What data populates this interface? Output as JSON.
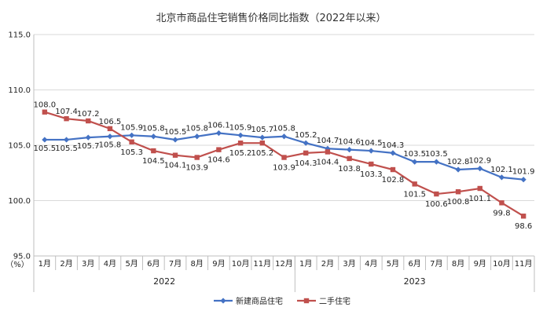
{
  "chart_data": {
    "type": "line",
    "title": "北京市商品住宅销售价格同比指数（2022年以来）",
    "unit_label": "（%）",
    "ylim": [
      95.0,
      115.0
    ],
    "yticks": [
      "95.0",
      "100.0",
      "105.0",
      "110.0",
      "115.0"
    ],
    "categories": [
      "1月",
      "2月",
      "3月",
      "4月",
      "5月",
      "6月",
      "7月",
      "8月",
      "9月",
      "10月",
      "11月",
      "12月",
      "1月",
      "2月",
      "3月",
      "4月",
      "5月",
      "6月",
      "7月",
      "8月",
      "9月",
      "10月",
      "11月"
    ],
    "years": [
      {
        "label": "2022",
        "count": 12
      },
      {
        "label": "2023",
        "count": 11
      }
    ],
    "grid": true,
    "legend_position": "bottom",
    "series": [
      {
        "name": "新建商品住宅",
        "color": "#4472C4",
        "marker": "diamond",
        "values": [
          105.5,
          105.5,
          105.7,
          105.8,
          105.9,
          105.8,
          105.5,
          105.8,
          106.1,
          105.9,
          105.7,
          105.8,
          105.2,
          104.7,
          104.6,
          104.5,
          104.3,
          103.5,
          103.5,
          102.8,
          102.9,
          102.1,
          101.9
        ],
        "labels": [
          "105.5",
          "105.5",
          "105.7",
          "105.8",
          "105.9",
          "105.8",
          "105.5",
          "105.8",
          "106.1",
          "105.9",
          "105.7",
          "105.8",
          "105.2",
          "104.7",
          "104.6",
          "104.5",
          "104.3",
          "103.5",
          "103.5",
          "102.8",
          "102.9",
          "102.1",
          "101.9"
        ]
      },
      {
        "name": "二手住宅",
        "color": "#C0504D",
        "marker": "square",
        "values": [
          108.0,
          107.4,
          107.2,
          106.5,
          105.3,
          104.5,
          104.1,
          103.9,
          104.6,
          105.2,
          105.2,
          103.9,
          104.3,
          104.4,
          103.8,
          103.3,
          102.8,
          101.5,
          100.6,
          100.8,
          101.1,
          99.8,
          98.6
        ],
        "labels": [
          "108.0",
          "107.4",
          "107.2",
          "106.5",
          "105.3",
          "104.5",
          "104.1",
          "103.9",
          "104.6",
          "105.2",
          "105.2",
          "103.9",
          "104.3",
          "104.4",
          "103.8",
          "103.3",
          "102.8",
          "101.5",
          "100.6",
          "100.8",
          "101.1",
          "99.8",
          "98.6"
        ]
      }
    ]
  }
}
